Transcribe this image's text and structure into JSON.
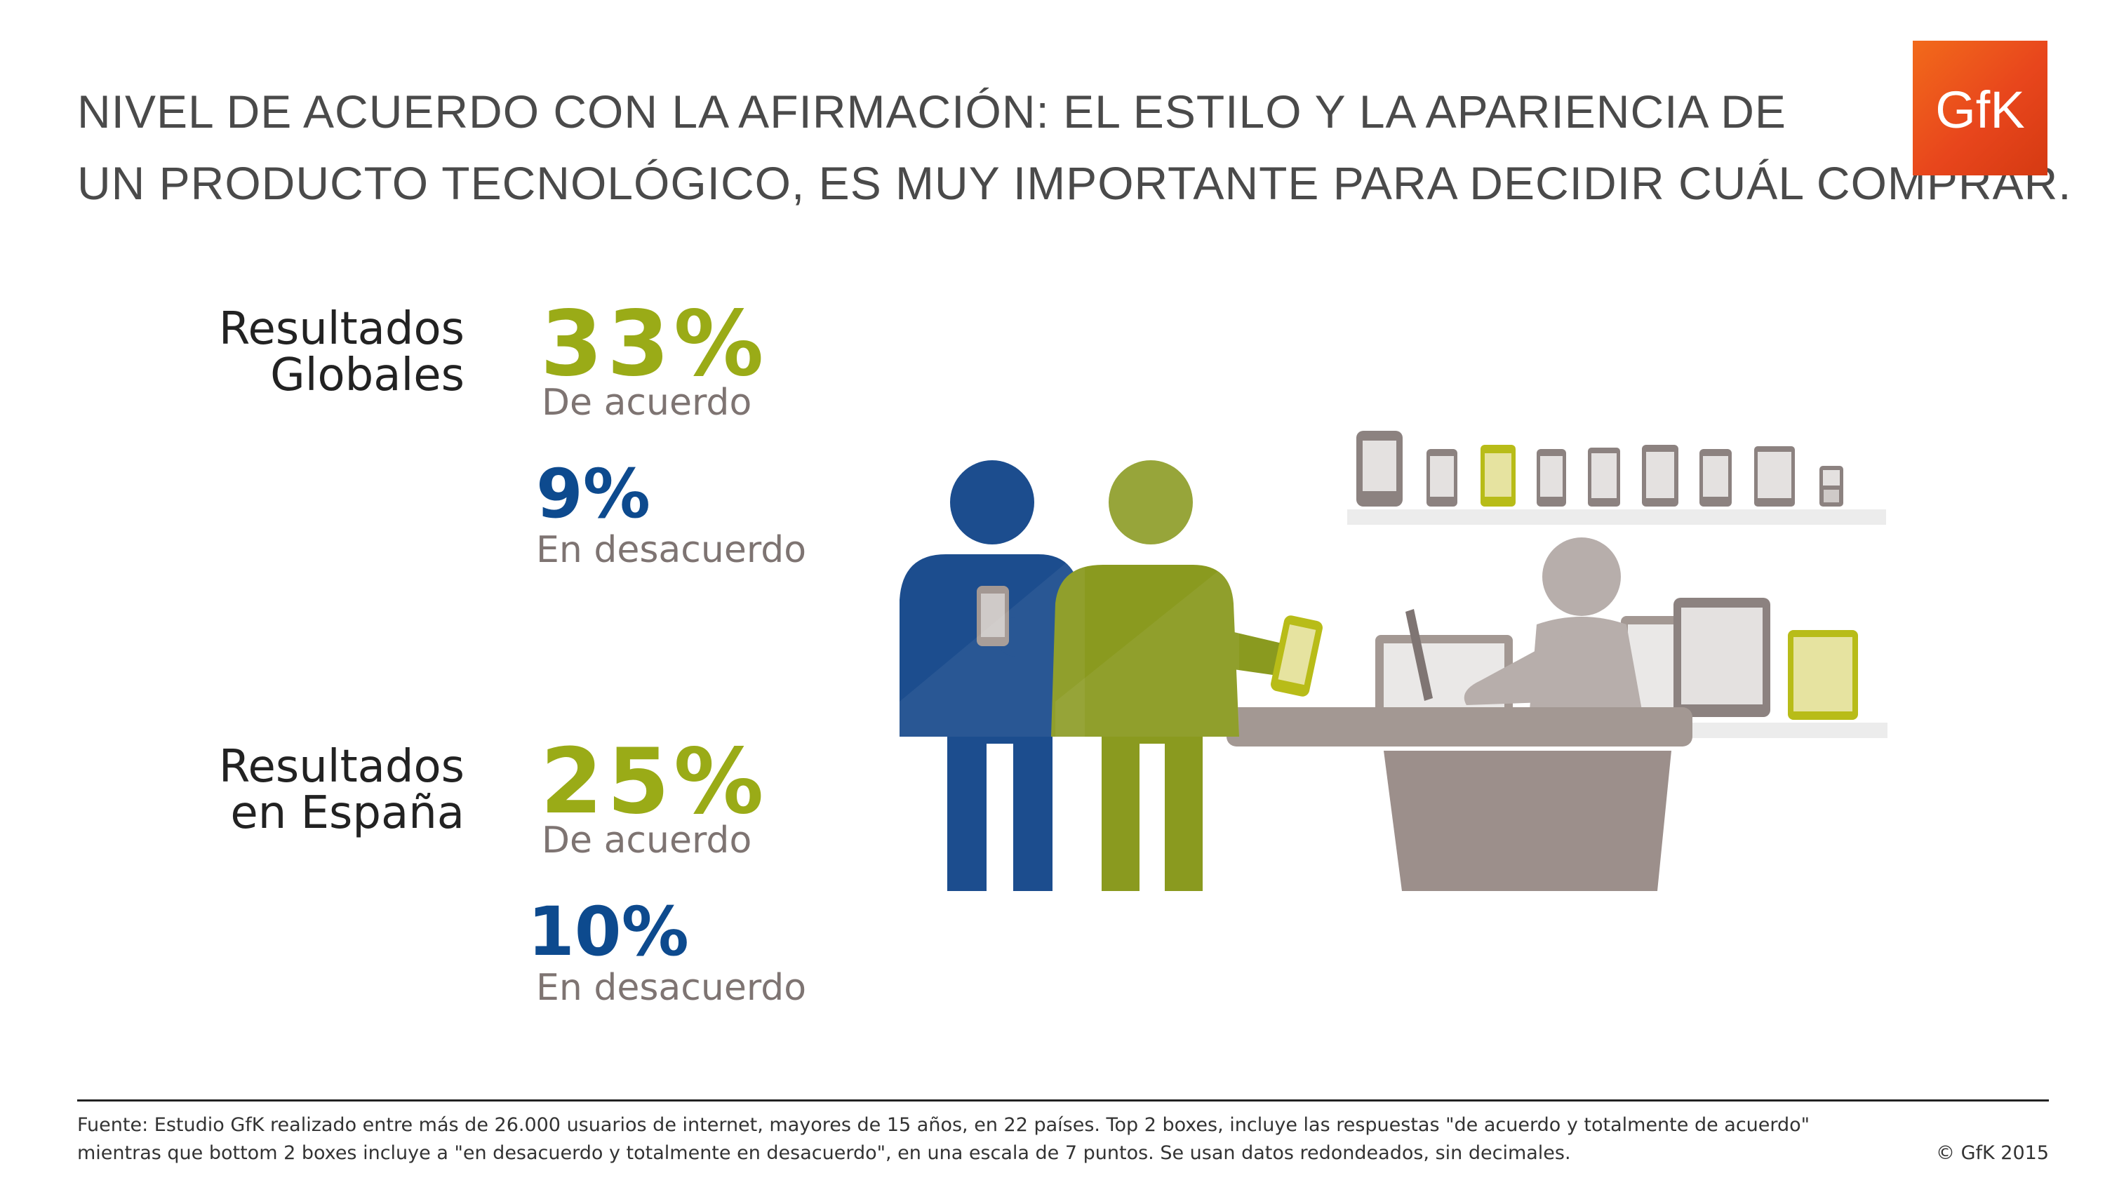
{
  "title": {
    "line1": "NIVEL DE ACUERDO CON LA AFIRMACIÓN: EL ESTILO Y LA APARIENCIA DE",
    "line2": "UN PRODUCTO TECNOLÓGICO, ES MUY IMPORTANTE PARA DECIDIR CUÁL COMPRAR."
  },
  "logo": {
    "text": "GfK",
    "color": "#e8461c"
  },
  "global": {
    "label_line1": "Resultados",
    "label_line2": "Globales",
    "agree_pct": "33%",
    "agree_label": "De acuerdo",
    "disagree_pct": "9%",
    "disagree_label": "En desacuerdo"
  },
  "spain": {
    "label_line1": "Resultados",
    "label_line2": "en España",
    "agree_pct": "25%",
    "agree_label": "De acuerdo",
    "disagree_pct": "10%",
    "disagree_label": "En desacuerdo"
  },
  "colors": {
    "agree": "#9aab17",
    "disagree": "#0d4a8e",
    "neutral": "#a39893"
  },
  "footer": {
    "source_line1": "Fuente: Estudio GfK realizado entre más de 26.000 usuarios de internet, mayores de 15 años, en 22 países. Top 2 boxes, incluye las respuestas \"de acuerdo y totalmente de acuerdo\"",
    "source_line2": "mientras que bottom 2 boxes incluye a \"en desacuerdo y totalmente en desacuerdo\", en una escala de 7 puntos. Se usan datos redondeados, sin decimales.",
    "copyright": "© GfK 2015"
  }
}
